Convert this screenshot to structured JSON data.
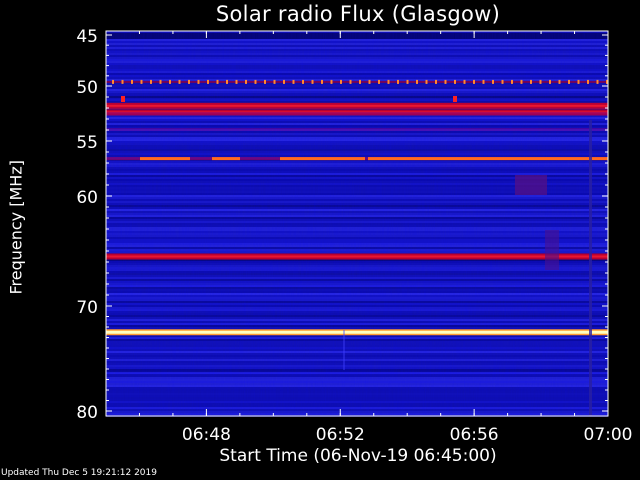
{
  "chart_data": {
    "type": "heatmap",
    "title": "Solar radio Flux (Glasgow)",
    "xlabel": "Start Time (06-Nov-19 06:45:00)",
    "ylabel": "Frequency [MHz]",
    "x_start": "06:45:00",
    "x_end": "07:00:00",
    "x_ticks": [
      "06:48",
      "06:52",
      "06:56",
      "07:00"
    ],
    "y_ticks": [
      45,
      50,
      55,
      60,
      70,
      80
    ],
    "ylim": [
      45,
      80
    ],
    "bands": [
      {
        "freq": 49.6,
        "intensity": "medium-pulsed"
      },
      {
        "freq": 51.8,
        "intensity": "high"
      },
      {
        "freq": 52.4,
        "intensity": "high"
      },
      {
        "freq": 56.6,
        "intensity": "medium"
      },
      {
        "freq": 65.5,
        "intensity": "high"
      },
      {
        "freq": 72.5,
        "intensity": "very-high"
      }
    ],
    "colors": {
      "background": "#000000",
      "plot_low": "#1010c8",
      "band_high": "#cc0022",
      "band_peak": "#ffffc0"
    }
  },
  "footer": {
    "updated": "Updated Thu Dec  5 19:21:12 2019"
  }
}
